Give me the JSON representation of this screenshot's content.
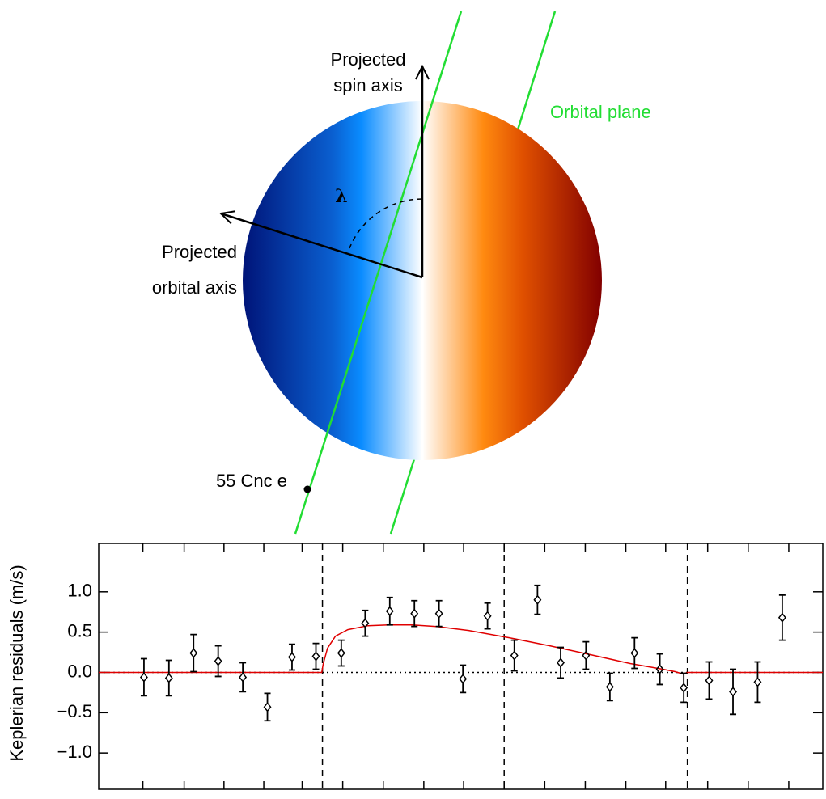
{
  "diagram": {
    "spin_label_1": "Projected",
    "spin_label_2": "spin axis",
    "orbital_plane_label": "Orbital plane",
    "lambda_label": "λ",
    "orbital_label_1": "Projected",
    "orbital_label_2": "orbital axis",
    "planet_label": "55 Cnc e"
  },
  "chart_data": {
    "type": "scatter",
    "y_label": "Keplerian residuals (m/s)",
    "color": "#000000",
    "x": [
      0.0625,
      0.097,
      0.131,
      0.165,
      0.199,
      0.233,
      0.267,
      0.3,
      0.335,
      0.368,
      0.402,
      0.436,
      0.47,
      0.503,
      0.537,
      0.574,
      0.606,
      0.638,
      0.673,
      0.706,
      0.74,
      0.775,
      0.808,
      0.843,
      0.876,
      0.91,
      0.944
    ],
    "values": [
      -0.06,
      -0.07,
      0.24,
      0.14,
      -0.06,
      -0.43,
      0.19,
      0.2,
      0.24,
      0.61,
      0.76,
      0.73,
      0.73,
      -0.08,
      0.7,
      0.21,
      0.9,
      0.12,
      0.21,
      -0.18,
      0.24,
      0.04,
      -0.19,
      -0.1,
      -0.24,
      -0.12,
      0.68
    ],
    "errors": [
      0.23,
      0.22,
      0.23,
      0.19,
      0.18,
      0.17,
      0.16,
      0.16,
      0.16,
      0.16,
      0.17,
      0.16,
      0.16,
      0.17,
      0.16,
      0.19,
      0.18,
      0.19,
      0.17,
      0.17,
      0.19,
      0.19,
      0.18,
      0.23,
      0.28,
      0.25,
      0.28
    ],
    "model_color": "#e00000",
    "model_x": [
      0,
      0.308,
      0.31,
      0.316,
      0.327,
      0.344,
      0.372,
      0.4,
      0.433,
      0.467,
      0.511,
      0.567,
      0.623,
      0.679,
      0.734,
      0.779,
      0.796,
      0.807,
      0.813,
      1.0
    ],
    "model_values": [
      0,
      0,
      0.1,
      0.3,
      0.45,
      0.53,
      0.58,
      0.59,
      0.59,
      0.57,
      0.52,
      0.43,
      0.33,
      0.22,
      0.11,
      0.04,
      0.01,
      -0.02,
      0,
      0
    ],
    "vlines": [
      0.309,
      0.56,
      0.813
    ],
    "hline": 0,
    "xlim": [
      0,
      1
    ],
    "ylim": [
      -1.45,
      1.6
    ],
    "xticks": [
      0.061,
      0.118,
      0.173,
      0.228,
      0.281,
      0.337,
      0.393,
      0.449,
      0.504,
      0.56,
      0.616,
      0.672,
      0.728,
      0.783,
      0.841,
      0.897,
      0.953
    ],
    "yticks": [
      {
        "value": -1.0,
        "label": "−1.0"
      },
      {
        "value": -0.5,
        "label": "−0.5"
      },
      {
        "value": 0.0,
        "label": "0.0"
      },
      {
        "value": 0.5,
        "label": "0.5"
      },
      {
        "value": 1.0,
        "label": "1.0"
      }
    ]
  }
}
